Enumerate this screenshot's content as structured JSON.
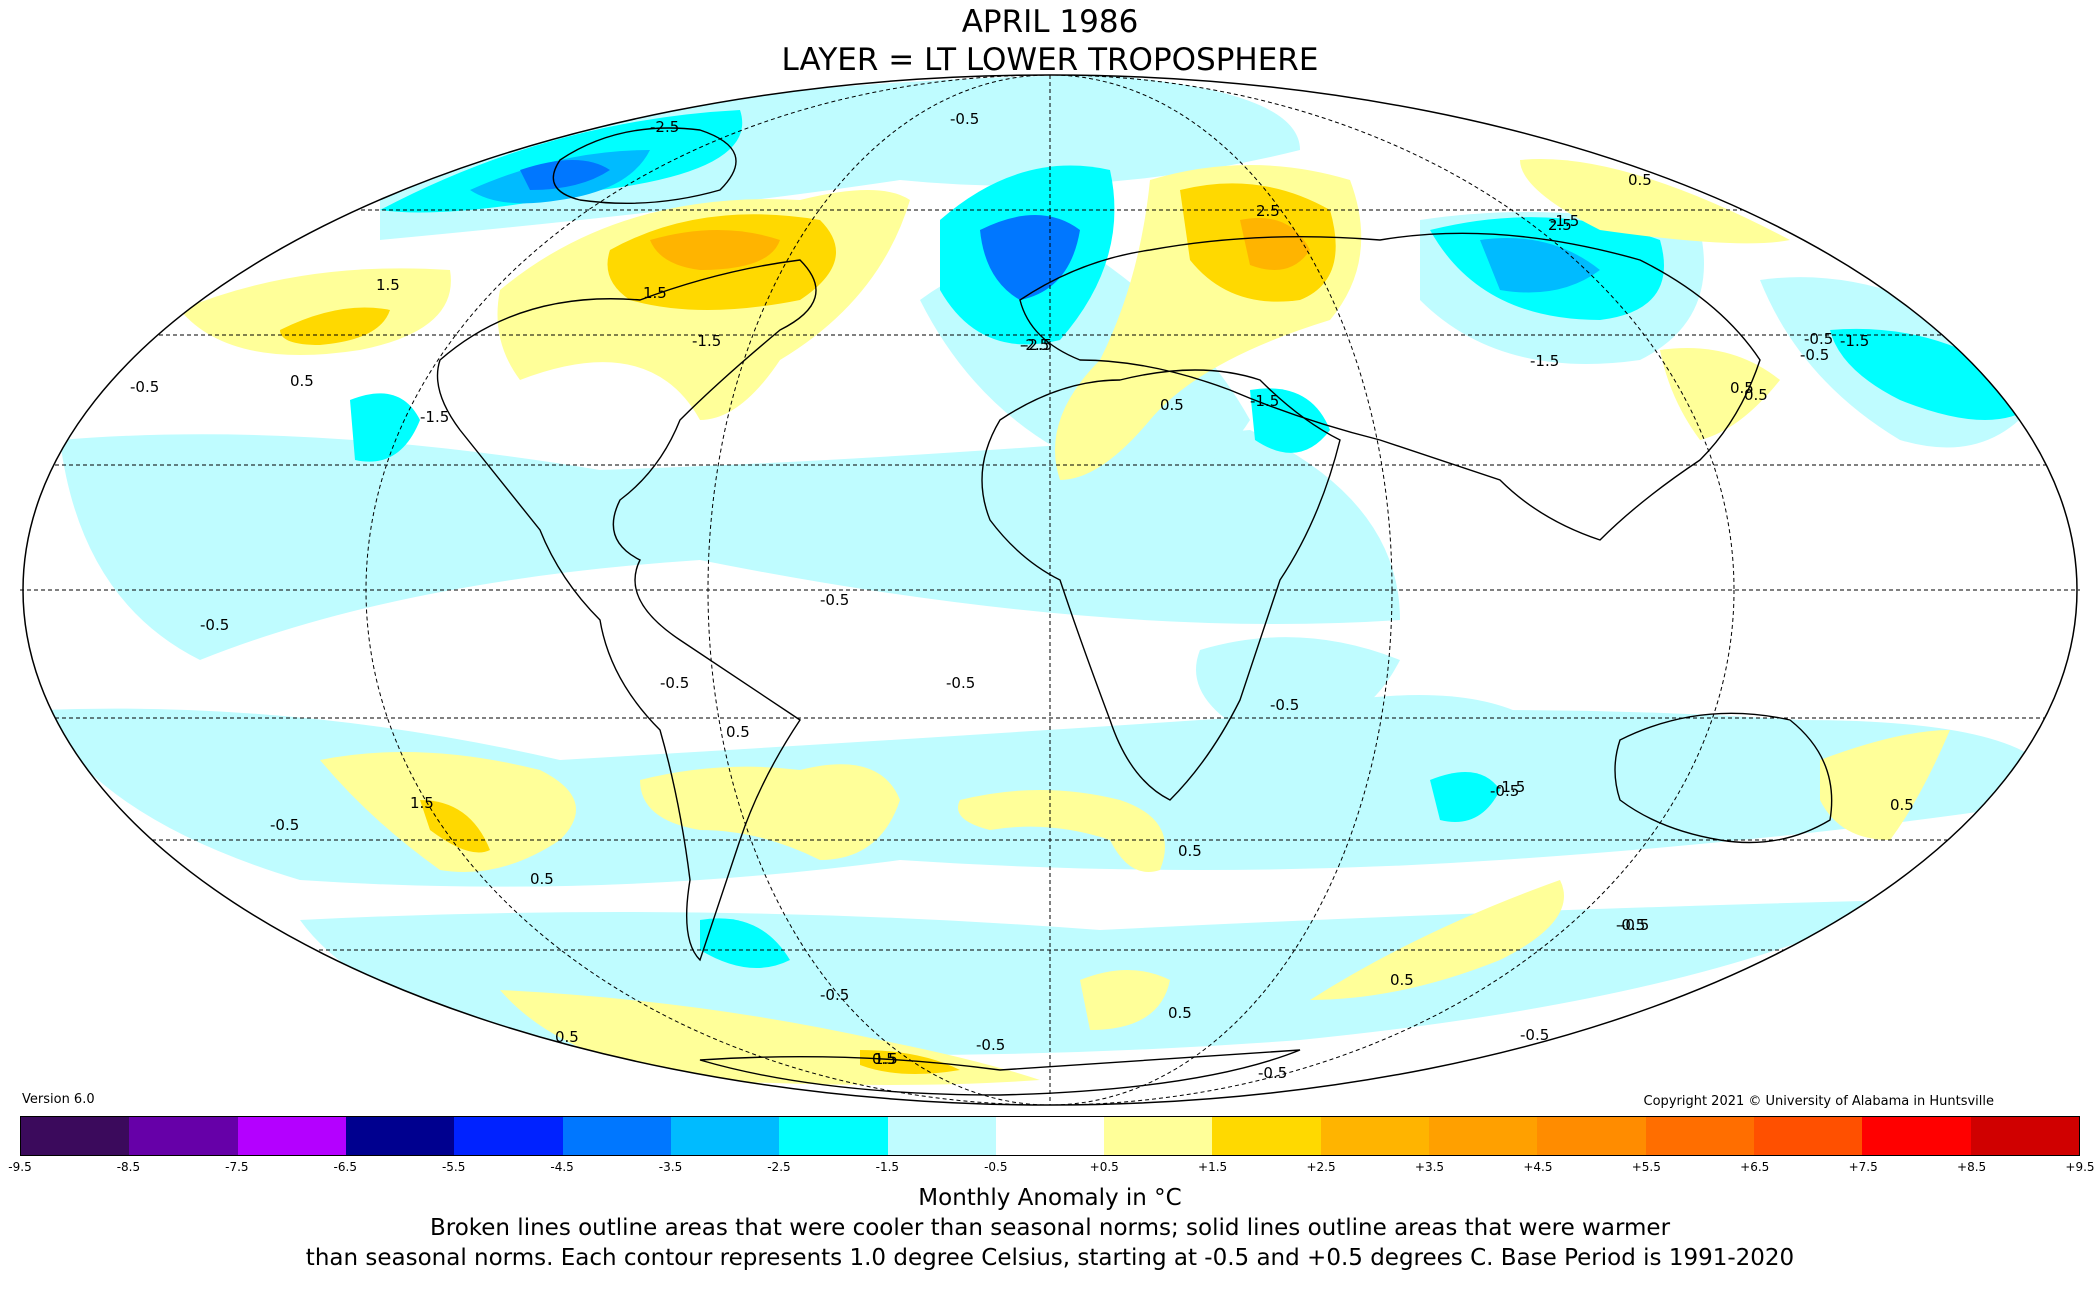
{
  "title_line1": "APRIL 1986",
  "title_line2": "LAYER = LT LOWER TROPOSPHERE",
  "version": "Version 6.0",
  "copyright": "Copyright 2021 © University of Alabama in Huntsville",
  "colorbar": {
    "ticks": [
      "-9.5",
      "-8.5",
      "-7.5",
      "-6.5",
      "-5.5",
      "-4.5",
      "-3.5",
      "-2.5",
      "-1.5",
      "-0.5",
      "+0.5",
      "+1.5",
      "+2.5",
      "+3.5",
      "+4.5",
      "+5.5",
      "+6.5",
      "+7.5",
      "+8.5",
      "+9.5"
    ],
    "colors": [
      "#3b0a5c",
      "#6600a8",
      "#b400ff",
      "#00008f",
      "#0022ff",
      "#0077ff",
      "#00bbff",
      "#00ffff",
      "#bffcff",
      "#ffffff",
      "#ffff99",
      "#ffd900",
      "#ffb400",
      "#ffa000",
      "#ff8c00",
      "#ff6e00",
      "#ff5000",
      "#ff0000",
      "#d00000"
    ],
    "label": "Monthly Anomaly in °C"
  },
  "note_line1": "Broken lines outline areas that were cooler than seasonal norms; solid lines outline areas that were warmer",
  "note_line2": "than seasonal norms. Each contour represents 1.0 degree Celsius, starting at -0.5 and +0.5 degrees C. Base Period is 1991-2020",
  "contour_labels": [
    "2.5",
    "-2.5",
    "-1.5",
    "-0.5",
    "-0.5",
    "2.5",
    "1.5",
    "-1.5",
    "-1.5",
    "-0.5",
    "0.5",
    "1.5",
    "0.5",
    "-1.5",
    "-0.5",
    "-2.5",
    "-1.5",
    "-2.5",
    "0.5",
    "-1.5",
    "-0.5",
    "-0.5",
    "0.5",
    "-0.5",
    "-0.5",
    "-0.5",
    "0.5",
    "1.5",
    "0.5",
    "-0.5",
    "0.5",
    "-1.5",
    "0.5",
    "-0.5",
    "0.5",
    "0.5",
    "-0.5",
    "-0.5",
    "0.5",
    "1.5",
    "0.5",
    "-0.5",
    "-0.5",
    "0.5",
    "-0.5",
    "-0.5"
  ]
}
